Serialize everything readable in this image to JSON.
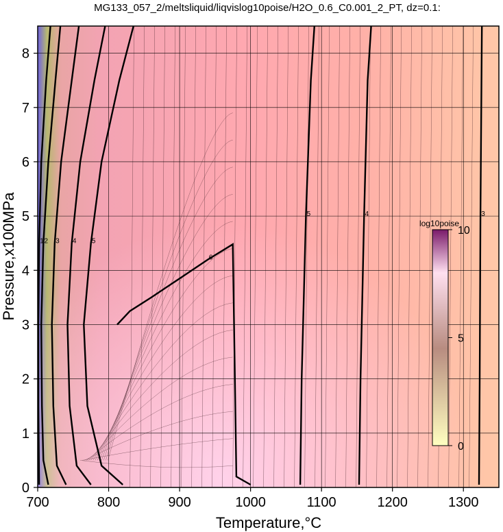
{
  "chart_data": {
    "type": "heatmap",
    "title": "MG133_057_2/meltsliquid/liqvislog10poise/H2O_0.6_C0.001_2_PT, dz=0.1:",
    "xlabel": "Temperature,°C",
    "ylabel": "Pressure,x100MPa",
    "xlim": [
      700,
      1350
    ],
    "ylim": [
      0,
      8.5
    ],
    "x_ticks": [
      700,
      800,
      900,
      1000,
      1100,
      1200,
      1300
    ],
    "x_tick_labels": [
      "700",
      "800",
      "900",
      "1000",
      "1100",
      "1200",
      "1300"
    ],
    "y_ticks": [
      0,
      1,
      2,
      3,
      4,
      5,
      6,
      7,
      8
    ],
    "y_tick_labels": [
      "0",
      "1",
      "2",
      "3",
      "4",
      "5",
      "6",
      "7",
      "8"
    ],
    "grid": true,
    "colorbar": {
      "title": "log10poise",
      "range": [
        0,
        10
      ],
      "ticks": [
        0,
        5,
        10
      ],
      "tick_labels": [
        "0",
        "5",
        "10"
      ],
      "colors": [
        "#ffffc0",
        "#b88c80",
        "#ffe0f0",
        "#7a1a6a"
      ]
    },
    "contour_lines": [
      {
        "level": 6,
        "label": "6",
        "points": [
          [
            812,
            3.0
          ],
          [
            830,
            3.25
          ],
          [
            860,
            3.5
          ],
          [
            900,
            3.85
          ],
          [
            940,
            4.2
          ],
          [
            975,
            4.48
          ],
          [
            978,
            2.0
          ],
          [
            980,
            0.2
          ],
          [
            1000,
            0.05
          ]
        ]
      },
      {
        "level": 5,
        "label": "5",
        "points": [
          [
            1070,
            0.05
          ],
          [
            1072,
            2.0
          ],
          [
            1078,
            5.0
          ],
          [
            1085,
            7.5
          ],
          [
            1090,
            8.5
          ]
        ]
      },
      {
        "level": 4,
        "label": "4",
        "points": [
          [
            1153,
            0.05
          ],
          [
            1155,
            2.0
          ],
          [
            1160,
            5.0
          ],
          [
            1165,
            7.5
          ],
          [
            1170,
            8.5
          ]
        ]
      },
      {
        "level": 3,
        "label": "3",
        "points": [
          [
            1322,
            0.05
          ],
          [
            1323,
            2.0
          ],
          [
            1324,
            5.0
          ],
          [
            1326,
            8.5
          ]
        ]
      },
      {
        "level": 5,
        "label": "5",
        "points": [
          [
            820,
            0.05
          ],
          [
            790,
            0.4
          ],
          [
            770,
            1.5
          ],
          [
            765,
            3.0
          ],
          [
            775,
            4.5
          ],
          [
            790,
            6.0
          ],
          [
            815,
            7.5
          ],
          [
            835,
            8.5
          ]
        ]
      },
      {
        "level": 4,
        "label": "4",
        "points": [
          [
            775,
            0.05
          ],
          [
            755,
            0.4
          ],
          [
            745,
            1.5
          ],
          [
            742,
            3.0
          ],
          [
            748,
            4.5
          ],
          [
            760,
            6.0
          ],
          [
            780,
            7.5
          ],
          [
            795,
            8.5
          ]
        ]
      },
      {
        "level": 3,
        "label": "3",
        "points": [
          [
            740,
            0.05
          ],
          [
            727,
            0.4
          ],
          [
            722,
            1.5
          ],
          [
            720,
            3.0
          ],
          [
            724,
            4.5
          ],
          [
            733,
            6.0
          ],
          [
            748,
            7.5
          ],
          [
            758,
            8.5
          ]
        ]
      },
      {
        "level": 2,
        "label": "2",
        "points": [
          [
            715,
            0.05
          ],
          [
            708,
            0.5
          ],
          [
            706,
            1.5
          ],
          [
            705,
            3.0
          ],
          [
            708,
            4.5
          ],
          [
            715,
            6.0
          ],
          [
            725,
            7.5
          ],
          [
            732,
            8.5
          ]
        ]
      },
      {
        "level": 1,
        "label": "1",
        "points": [
          [
            702,
            0.05
          ],
          [
            701,
            1.5
          ],
          [
            701,
            3.0
          ],
          [
            702,
            4.5
          ],
          [
            705,
            6.0
          ],
          [
            712,
            7.5
          ],
          [
            718,
            8.5
          ]
        ]
      }
    ]
  }
}
